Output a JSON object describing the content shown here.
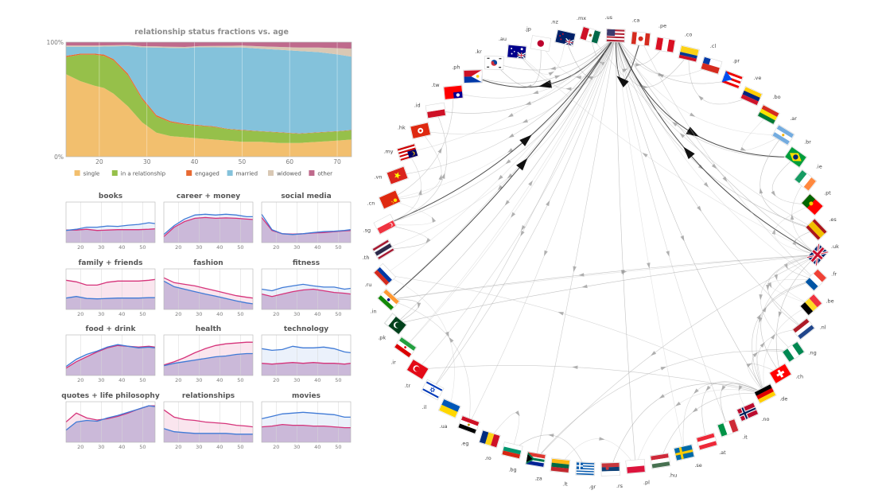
{
  "chart_data": [
    {
      "type": "area",
      "title": "relationship status fractions vs. age",
      "stacked": true,
      "normalized": true,
      "xlim": [
        13,
        73
      ],
      "ylim": [
        0,
        100
      ],
      "x_ticks": [
        20,
        30,
        40,
        50,
        60,
        70
      ],
      "y_tick_labels": [
        "0%",
        "100%"
      ],
      "legend_placement": "bottom",
      "x": [
        13,
        16,
        19,
        21,
        23,
        26,
        29,
        32,
        35,
        38,
        41,
        44,
        47,
        50,
        54,
        58,
        62,
        66,
        70,
        73
      ],
      "series": [
        {
          "name": "single",
          "color": "#f2bf6e",
          "values": [
            72,
            66,
            62,
            60,
            55,
            44,
            30,
            21,
            18,
            17,
            16,
            15,
            14,
            13,
            13,
            12,
            12,
            13,
            14,
            15
          ]
        },
        {
          "name": "in a relationship",
          "color": "#96c04a",
          "values": [
            15,
            23,
            27,
            28,
            29,
            27,
            20,
            14,
            12,
            11,
            11,
            11,
            10,
            10,
            9,
            9,
            8,
            8,
            8,
            8
          ]
        },
        {
          "name": "engaged",
          "color": "#e86a32",
          "values": [
            1,
            1,
            1,
            1.2,
            1.3,
            1.6,
            1.5,
            1.3,
            1,
            0.8,
            0.6,
            0.5,
            0.4,
            0.4,
            0.3,
            0.3,
            0.3,
            0.3,
            0.3,
            0.3
          ]
        },
        {
          "name": "married",
          "color": "#84c2db",
          "values": [
            8,
            6,
            6,
            7,
            11,
            24,
            44,
            59,
            64,
            66,
            68,
            69,
            71,
            72,
            72,
            72,
            72,
            70,
            67,
            64
          ]
        },
        {
          "name": "widowed",
          "color": "#d9c8b4",
          "values": [
            1,
            1,
            1,
            1,
            1,
            1,
            1,
            1,
            1,
            1,
            1,
            1.2,
            1.4,
            1.6,
            2,
            2.5,
            3,
            4,
            5.5,
            7
          ]
        },
        {
          "name": "other",
          "color": "#bf6a8c",
          "values": [
            3,
            3,
            3,
            2.8,
            2.7,
            2.4,
            3.5,
            3.7,
            4,
            4.2,
            3.4,
            3.3,
            3.2,
            3,
            3.7,
            4.2,
            4.7,
            4.7,
            5.2,
            5.7
          ]
        }
      ]
    },
    {
      "type": "line",
      "panels_grid": [
        4,
        3
      ],
      "xlim": [
        13,
        56
      ],
      "x_ticks": [
        20,
        30,
        40,
        50
      ],
      "series_colors": {
        "blue": "#3f7ad6",
        "pink": "#d6337a"
      },
      "overlap_fill": "#c6b3d6",
      "x": [
        13,
        18,
        23,
        28,
        33,
        38,
        43,
        48,
        53,
        56
      ],
      "panels": [
        {
          "title": "books",
          "blue": [
            0.3,
            0.33,
            0.38,
            0.38,
            0.41,
            0.4,
            0.43,
            0.45,
            0.49,
            0.47
          ],
          "pink": [
            0.31,
            0.31,
            0.33,
            0.3,
            0.31,
            0.32,
            0.32,
            0.32,
            0.33,
            0.34
          ]
        },
        {
          "title": "career + money",
          "blue": [
            0.2,
            0.42,
            0.58,
            0.68,
            0.7,
            0.68,
            0.7,
            0.68,
            0.64,
            0.64
          ],
          "pink": [
            0.15,
            0.38,
            0.52,
            0.6,
            0.62,
            0.6,
            0.61,
            0.6,
            0.58,
            0.57
          ]
        },
        {
          "title": "social media",
          "blue": [
            0.7,
            0.32,
            0.22,
            0.2,
            0.22,
            0.25,
            0.27,
            0.28,
            0.3,
            0.32
          ],
          "pink": [
            0.62,
            0.3,
            0.22,
            0.21,
            0.22,
            0.24,
            0.25,
            0.27,
            0.29,
            0.3
          ]
        },
        {
          "title": "family + friends",
          "blue": [
            0.28,
            0.32,
            0.27,
            0.26,
            0.27,
            0.28,
            0.28,
            0.28,
            0.29,
            0.29
          ],
          "pink": [
            0.72,
            0.68,
            0.6,
            0.6,
            0.67,
            0.7,
            0.7,
            0.7,
            0.72,
            0.74
          ]
        },
        {
          "title": "fashion",
          "blue": [
            0.7,
            0.56,
            0.5,
            0.44,
            0.38,
            0.33,
            0.27,
            0.21,
            0.16,
            0.14
          ],
          "pink": [
            0.78,
            0.66,
            0.62,
            0.58,
            0.52,
            0.46,
            0.4,
            0.34,
            0.3,
            0.28
          ]
        },
        {
          "title": "fitness",
          "blue": [
            0.5,
            0.46,
            0.54,
            0.58,
            0.62,
            0.58,
            0.55,
            0.55,
            0.5,
            0.52
          ],
          "pink": [
            0.38,
            0.32,
            0.38,
            0.44,
            0.48,
            0.5,
            0.46,
            0.42,
            0.4,
            0.38
          ]
        },
        {
          "title": "food + drink",
          "blue": [
            0.22,
            0.4,
            0.52,
            0.6,
            0.7,
            0.76,
            0.72,
            0.68,
            0.7,
            0.68
          ],
          "pink": [
            0.18,
            0.34,
            0.46,
            0.58,
            0.68,
            0.74,
            0.72,
            0.7,
            0.72,
            0.7
          ]
        },
        {
          "title": "health",
          "blue": [
            0.24,
            0.3,
            0.34,
            0.38,
            0.42,
            0.46,
            0.48,
            0.52,
            0.54,
            0.54
          ],
          "pink": [
            0.26,
            0.34,
            0.44,
            0.56,
            0.66,
            0.74,
            0.78,
            0.8,
            0.82,
            0.82
          ]
        },
        {
          "title": "technology",
          "blue": [
            0.66,
            0.62,
            0.64,
            0.72,
            0.68,
            0.68,
            0.7,
            0.66,
            0.58,
            0.56
          ],
          "pink": [
            0.3,
            0.28,
            0.3,
            0.32,
            0.3,
            0.32,
            0.3,
            0.3,
            0.28,
            0.3
          ]
        },
        {
          "title": "quotes + life philosophy",
          "blue": [
            0.3,
            0.5,
            0.54,
            0.52,
            0.6,
            0.66,
            0.74,
            0.82,
            0.9,
            0.88
          ],
          "pink": [
            0.5,
            0.72,
            0.6,
            0.55,
            0.58,
            0.64,
            0.72,
            0.82,
            0.9,
            0.9
          ]
        },
        {
          "title": "relationships",
          "blue": [
            0.34,
            0.26,
            0.24,
            0.22,
            0.22,
            0.22,
            0.22,
            0.2,
            0.2,
            0.2
          ],
          "pink": [
            0.8,
            0.62,
            0.56,
            0.54,
            0.5,
            0.48,
            0.46,
            0.42,
            0.4,
            0.38
          ]
        },
        {
          "title": "movies",
          "blue": [
            0.58,
            0.64,
            0.7,
            0.72,
            0.74,
            0.72,
            0.7,
            0.68,
            0.62,
            0.62
          ],
          "pink": [
            0.38,
            0.4,
            0.44,
            0.42,
            0.42,
            0.4,
            0.4,
            0.38,
            0.36,
            0.36
          ]
        }
      ]
    },
    {
      "type": "network",
      "layout": "circular",
      "nodes": [
        {
          "label": ".us",
          "flag": "us"
        },
        {
          "label": ".ca",
          "flag": "ca"
        },
        {
          "label": ".pe",
          "flag": "pe"
        },
        {
          "label": ".co",
          "flag": "co"
        },
        {
          "label": ".cl",
          "flag": "cl"
        },
        {
          "label": ".pr",
          "flag": "pr"
        },
        {
          "label": ".ve",
          "flag": "ve"
        },
        {
          "label": ".bo",
          "flag": "bo"
        },
        {
          "label": ".ar",
          "flag": "ar"
        },
        {
          "label": ".br",
          "flag": "br"
        },
        {
          "label": ".ie",
          "flag": "ie"
        },
        {
          "label": ".pt",
          "flag": "pt"
        },
        {
          "label": ".es",
          "flag": "es"
        },
        {
          "label": ".uk",
          "flag": "uk"
        },
        {
          "label": ".fr",
          "flag": "fr"
        },
        {
          "label": ".be",
          "flag": "be"
        },
        {
          "label": ".nl",
          "flag": "nl"
        },
        {
          "label": ".ng",
          "flag": "ng"
        },
        {
          "label": ".ch",
          "flag": "ch"
        },
        {
          "label": ".de",
          "flag": "de"
        },
        {
          "label": ".no",
          "flag": "no"
        },
        {
          "label": ".it",
          "flag": "it"
        },
        {
          "label": ".at",
          "flag": "at"
        },
        {
          "label": ".se",
          "flag": "se"
        },
        {
          "label": ".hu",
          "flag": "hu"
        },
        {
          "label": ".pl",
          "flag": "pl"
        },
        {
          "label": ".rs",
          "flag": "rs"
        },
        {
          "label": ".gr",
          "flag": "gr"
        },
        {
          "label": ".lt",
          "flag": "lt"
        },
        {
          "label": ".za",
          "flag": "za"
        },
        {
          "label": ".bg",
          "flag": "bg"
        },
        {
          "label": ".ro",
          "flag": "ro"
        },
        {
          "label": ".eg",
          "flag": "eg"
        },
        {
          "label": ".ua",
          "flag": "ua"
        },
        {
          "label": ".il",
          "flag": "il"
        },
        {
          "label": ".tr",
          "flag": "tr"
        },
        {
          "label": ".ir",
          "flag": "ir"
        },
        {
          "label": ".pk",
          "flag": "pk"
        },
        {
          "label": ".in",
          "flag": "in"
        },
        {
          "label": ".ru",
          "flag": "ru"
        },
        {
          "label": ".th",
          "flag": "th"
        },
        {
          "label": ".sg",
          "flag": "sg"
        },
        {
          "label": ".cn",
          "flag": "cn"
        },
        {
          "label": ".vn",
          "flag": "vn"
        },
        {
          "label": ".my",
          "flag": "my"
        },
        {
          "label": ".hk",
          "flag": "hk"
        },
        {
          "label": ".id",
          "flag": "id"
        },
        {
          "label": ".tw",
          "flag": "tw"
        },
        {
          "label": ".ph",
          "flag": "ph"
        },
        {
          "label": ".kr",
          "flag": "kr"
        },
        {
          "label": ".au",
          "flag": "au"
        },
        {
          "label": ".jp",
          "flag": "jp"
        },
        {
          "label": ".nz",
          "flag": "nz"
        },
        {
          "label": ".mx",
          "flag": "mx"
        }
      ],
      "edges": [
        [
          ".us",
          ".in"
        ],
        [
          ".us",
          ".ph"
        ],
        [
          ".us",
          ".cn"
        ],
        [
          ".us",
          ".uk"
        ],
        [
          ".us",
          ".ca"
        ],
        [
          ".us",
          ".br"
        ],
        [
          ".us",
          ".ru"
        ],
        [
          ".us",
          ".de"
        ],
        [
          ".us",
          ".au"
        ],
        [
          ".us",
          ".mx"
        ],
        [
          ".us",
          ".jp"
        ],
        [
          ".us",
          ".kr"
        ],
        [
          ".us",
          ".tw"
        ],
        [
          ".us",
          ".sg"
        ],
        [
          ".us",
          ".my"
        ],
        [
          ".us",
          ".id"
        ],
        [
          ".us",
          ".hk"
        ],
        [
          ".us",
          ".pe"
        ],
        [
          ".us",
          ".fr"
        ],
        [
          ".us",
          ".es"
        ],
        [
          ".us",
          ".it"
        ],
        [
          ".us",
          ".nl"
        ],
        [
          ".us",
          ".se"
        ],
        [
          ".us",
          ".pl"
        ],
        [
          ".us",
          ".tr"
        ],
        [
          ".us",
          ".za"
        ],
        [
          ".us",
          ".ar"
        ],
        [
          ".us",
          ".co"
        ],
        [
          ".us",
          ".cl"
        ],
        [
          ".us",
          ".vn"
        ],
        [
          ".us",
          ".th"
        ],
        [
          ".us",
          ".pk"
        ],
        [
          ".us",
          ".eg"
        ],
        [
          ".us",
          ".il"
        ],
        [
          ".us",
          ".ir"
        ],
        [
          ".us",
          ".nz"
        ],
        [
          ".in",
          ".us"
        ],
        [
          ".sg",
          ".us"
        ],
        [
          ".ca",
          ".us"
        ],
        [
          ".ph",
          ".us"
        ],
        [
          ".uk",
          ".us"
        ],
        [
          ".br",
          ".us"
        ],
        [
          ".in",
          ".uk"
        ],
        [
          ".uk",
          ".in"
        ],
        [
          ".uk",
          ".ie"
        ],
        [
          ".uk",
          ".fr"
        ],
        [
          ".uk",
          ".pt"
        ],
        [
          ".uk",
          ".es"
        ],
        [
          ".uk",
          ".de"
        ],
        [
          ".uk",
          ".nl"
        ],
        [
          ".uk",
          ".au"
        ],
        [
          ".uk",
          ".pk"
        ],
        [
          ".uk",
          ".ng"
        ],
        [
          ".uk",
          ".za"
        ],
        [
          ".uk",
          ".be"
        ],
        [
          ".uk",
          ".ch"
        ],
        [
          ".de",
          ".ch"
        ],
        [
          ".de",
          ".at"
        ],
        [
          ".de",
          ".no"
        ],
        [
          ".de",
          ".it"
        ],
        [
          ".de",
          ".se"
        ],
        [
          ".de",
          ".hu"
        ],
        [
          ".de",
          ".pl"
        ],
        [
          ".de",
          ".rs"
        ],
        [
          ".de",
          ".nl"
        ],
        [
          ".de",
          ".fr"
        ],
        [
          ".de",
          ".be"
        ],
        [
          ".de",
          ".ng"
        ],
        [
          ".de",
          ".ru"
        ],
        [
          ".de",
          ".tr"
        ],
        [
          ".ru",
          ".ua"
        ],
        [
          ".sg",
          ".th"
        ],
        [
          ".sg",
          ".my"
        ],
        [
          ".sg",
          ".id"
        ],
        [
          ".sg",
          ".cn"
        ],
        [
          ".in",
          ".pk"
        ],
        [
          ".cn",
          ".hk"
        ],
        [
          ".cn",
          ".tw"
        ],
        [
          ".au",
          ".nz"
        ],
        [
          ".es",
          ".ar"
        ],
        [
          ".es",
          ".mx"
        ],
        [
          ".br",
          ".pt"
        ],
        [
          ".fr",
          ".be"
        ],
        [
          ".gr",
          ".bg"
        ],
        [
          ".ro",
          ".bg"
        ],
        [
          ".za",
          ".ng"
        ],
        [
          ".lt",
          ".pl"
        ],
        [
          ".ch",
          ".fr"
        ],
        [
          ".ca",
          ".fr"
        ],
        [
          ".ve",
          ".co"
        ],
        [
          ".bo",
          ".ar"
        ],
        [
          ".pr",
          ".us"
        ],
        [
          ".eg",
          ".in"
        ],
        [
          ".il",
          ".us"
        ],
        [
          ".ir",
          ".us"
        ],
        [
          ".jp",
          ".kr"
        ]
      ],
      "major_edges": [
        [
          ".sg",
          ".us"
        ],
        [
          ".in",
          ".us"
        ],
        [
          ".us",
          ".ph"
        ],
        [
          ".uk",
          ".us"
        ],
        [
          ".ca",
          ".us"
        ],
        [
          ".us",
          ".br"
        ]
      ]
    }
  ]
}
